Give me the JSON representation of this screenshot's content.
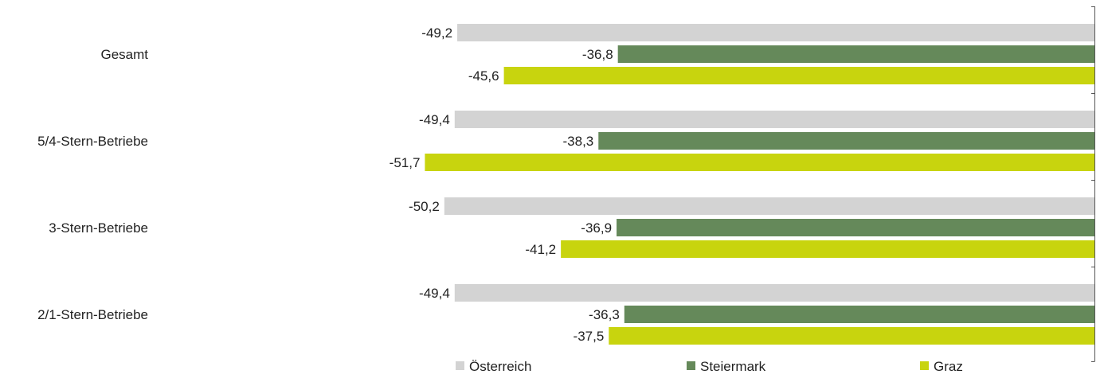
{
  "chart_data": {
    "type": "bar",
    "orientation": "horizontal",
    "title": "",
    "categories": [
      "Gesamt",
      "5/4-Stern-Betriebe",
      "3-Stern-Betriebe",
      "2/1-Stern-Betriebe"
    ],
    "series": [
      {
        "name": "Österreich",
        "color": "#d3d3d3",
        "values": [
          -49.2,
          -49.4,
          -50.2,
          -49.4
        ],
        "labels": [
          "-49,2",
          "-49,4",
          "-50,2",
          "-49,4"
        ]
      },
      {
        "name": "Steiermark",
        "color": "#65895a",
        "values": [
          -36.8,
          -38.3,
          -36.9,
          -36.3
        ],
        "labels": [
          "-36,8",
          "-38,3",
          "-36,9",
          "-36,3"
        ]
      },
      {
        "name": "Graz",
        "color": "#c8d40e",
        "values": [
          -45.6,
          -51.7,
          -41.2,
          -37.5
        ],
        "labels": [
          "-45,6",
          "-51,7",
          "-41,2",
          "-37,5"
        ]
      }
    ],
    "xlim": [
      -69.5,
      0
    ],
    "axis_position": "right",
    "legend_position": "bottom",
    "grid": false
  }
}
